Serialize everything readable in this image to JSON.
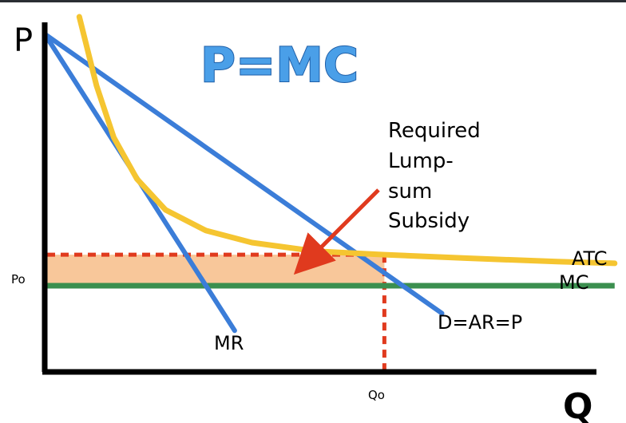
{
  "chart_data": {
    "type": "line",
    "title": "P=MC",
    "xlabel": "Q",
    "ylabel": "P",
    "x_tick_label": "Qo",
    "y_tick_label": "Po",
    "xlim": [
      0,
      10
    ],
    "ylim": [
      0,
      10
    ],
    "quantity": 5.9,
    "price": 2.5,
    "atc_at_quantity": 3.4,
    "series": [
      {
        "name": "D=AR=P",
        "color": "#3b7dd8",
        "x": [
          0,
          6.9
        ],
        "y": [
          9.8,
          1.7
        ]
      },
      {
        "name": "MR",
        "color": "#3b7dd8",
        "x": [
          0,
          3.3
        ],
        "y": [
          9.8,
          1.2
        ]
      },
      {
        "name": "ATC",
        "color": "#f5c531",
        "x": [
          0.6,
          0.9,
          1.2,
          1.6,
          2.1,
          2.8,
          3.6,
          4.7,
          5.9,
          7.3,
          8.9,
          9.9
        ],
        "y": [
          10.3,
          8.3,
          6.8,
          5.6,
          4.7,
          4.1,
          3.75,
          3.5,
          3.4,
          3.3,
          3.2,
          3.15
        ]
      },
      {
        "name": "MC",
        "color": "#3b8f4f",
        "x": [
          0,
          9.9
        ],
        "y": [
          2.5,
          2.5
        ]
      }
    ],
    "annotation": {
      "text": [
        "Required",
        "Lump-",
        "sum",
        "Subsidy"
      ],
      "arrow_color": "#e03a1e"
    },
    "subsidy_area_color": "#f8c79a",
    "guide_color": "#e03a1e"
  }
}
